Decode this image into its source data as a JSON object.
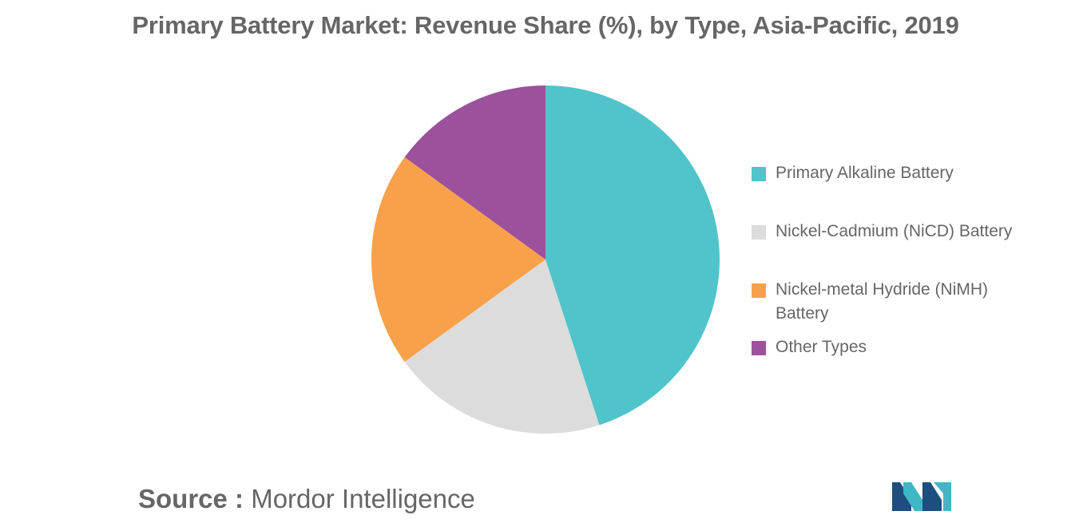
{
  "chart_data": {
    "type": "pie",
    "title": "Primary Battery Market: Revenue Share (%), by Type, Asia-Pacific, 2019",
    "categories": [
      "Primary Alkaline Battery",
      "Nickel-Cadmium (NiCD) Battery",
      "Nickel-metal Hydride (NiMH) Battery",
      "Other Types"
    ],
    "values": [
      45,
      20,
      20,
      15
    ],
    "colors": [
      "#50C4CA",
      "#DCDCDC",
      "#F9A14A",
      "#9C519D"
    ],
    "legend_position": "right"
  },
  "source": {
    "label": "Source :",
    "text": "Mordor Intelligence"
  },
  "logo": {
    "name": "mordor-intelligence-logo",
    "colors": [
      "#1C4E80",
      "#3FB7C7"
    ]
  }
}
